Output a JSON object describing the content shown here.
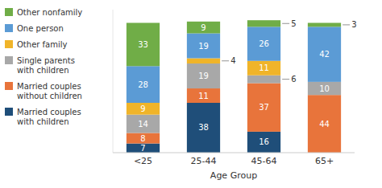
{
  "chart_data": {
    "type": "bar",
    "stacked": true,
    "data_labels": true,
    "tick_labels": "x",
    "x_label": "Age Group",
    "categories": [
      "<25",
      "25-44",
      "45-64",
      "65+"
    ],
    "series": [
      {
        "name": "Married couples\nwith children",
        "color": "#1f4e79",
        "values": [
          7,
          38,
          16,
          0
        ]
      },
      {
        "name": "Married couples\nwithout children",
        "color": "#e8743b",
        "values": [
          8,
          11,
          37,
          44
        ]
      },
      {
        "name": "Single parents\nwith children",
        "color": "#a8a8a8",
        "values": [
          14,
          19,
          6,
          10
        ]
      },
      {
        "name": "Other family",
        "color": "#f0b429",
        "values": [
          9,
          4,
          11,
          0
        ]
      },
      {
        "name": "One person",
        "color": "#5b9bd5",
        "values": [
          28,
          19,
          26,
          42
        ]
      },
      {
        "name": "Other nonfamily",
        "color": "#70ad47",
        "values": [
          33,
          9,
          5,
          3
        ]
      }
    ],
    "ylim": [
      0,
      109.08
    ],
    "legend": "upper left"
  }
}
